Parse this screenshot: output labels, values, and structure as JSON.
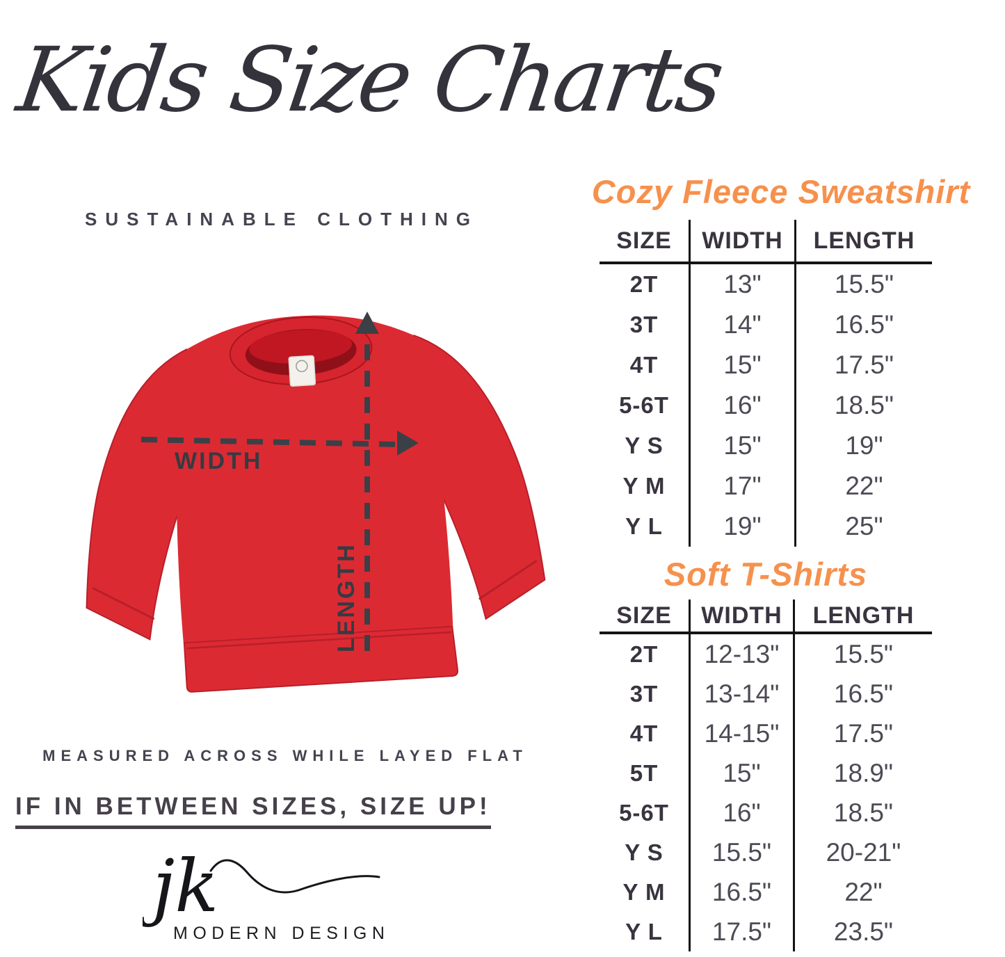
{
  "header": {
    "title": "Kids Size Charts",
    "subtitle": "SUSTAINABLE CLOTHING"
  },
  "diagram": {
    "width_label": "WIDTH",
    "length_label": "LENGTH"
  },
  "notes": {
    "measured": "MEASURED ACROSS WHILE LAYED FLAT",
    "size_up": "IF IN BETWEEN SIZES, SIZE UP!"
  },
  "logo": {
    "initials": "jk",
    "name": "MODERN DESIGN"
  },
  "colors": {
    "accent_orange": "#F6914D",
    "shirt_red": "#DC2A33",
    "text_dark": "#39343F",
    "value_gray": "#4E4A55",
    "table_line": "#141414"
  },
  "chart_data": [
    {
      "type": "table",
      "title": "Cozy Fleece Sweatshirt",
      "columns": [
        "SIZE",
        "WIDTH",
        "LENGTH"
      ],
      "rows": [
        [
          "2T",
          "13\"",
          "15.5\""
        ],
        [
          "3T",
          "14\"",
          "16.5\""
        ],
        [
          "4T",
          "15\"",
          "17.5\""
        ],
        [
          "5-6T",
          "16\"",
          "18.5\""
        ],
        [
          "Y S",
          "15\"",
          "19\""
        ],
        [
          "Y M",
          "17\"",
          "22\""
        ],
        [
          "Y L",
          "19\"",
          "25\""
        ]
      ]
    },
    {
      "type": "table",
      "title": "Soft T-Shirts",
      "columns": [
        "SIZE",
        "WIDTH",
        "LENGTH"
      ],
      "rows": [
        [
          "2T",
          "12-13\"",
          "15.5\""
        ],
        [
          "3T",
          "13-14\"",
          "16.5\""
        ],
        [
          "4T",
          "14-15\"",
          "17.5\""
        ],
        [
          "5T",
          "15\"",
          "18.9\""
        ],
        [
          "5-6T",
          "16\"",
          "18.5\""
        ],
        [
          "Y S",
          "15.5\"",
          "20-21\""
        ],
        [
          "Y M",
          "16.5\"",
          "22\""
        ],
        [
          "Y L",
          "17.5\"",
          "23.5\""
        ]
      ]
    }
  ]
}
